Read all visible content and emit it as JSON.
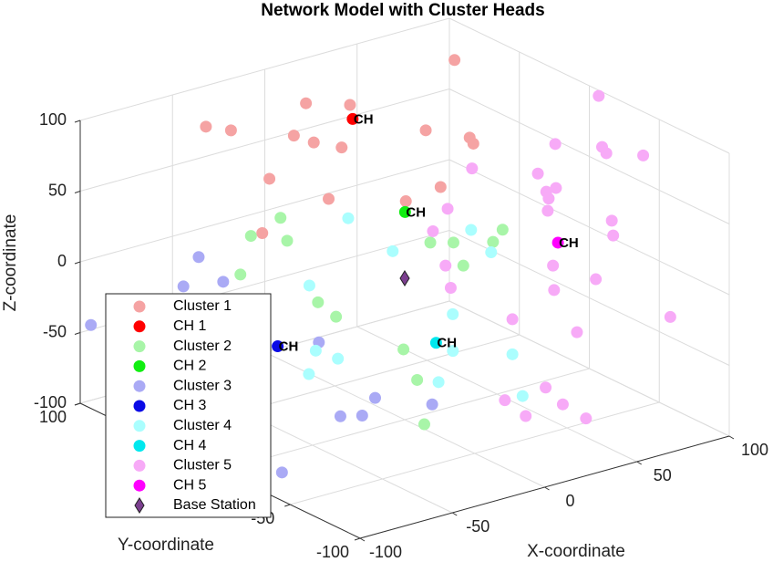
{
  "chart_data": {
    "type": "scatter3d",
    "title": "Network Model with Cluster Heads",
    "xlabel": "X-coordinate",
    "ylabel": "Y-coordinate",
    "zlabel": "Z-coordinate",
    "xlim": [
      -100,
      100
    ],
    "ylim": [
      -100,
      100
    ],
    "zlim": [
      -100,
      100
    ],
    "xticks": [
      -100,
      -50,
      0,
      50,
      100
    ],
    "yticks": [
      -100,
      -50,
      0,
      50,
      100
    ],
    "zticks": [
      -100,
      -50,
      0,
      50,
      100
    ],
    "grid": true,
    "legend": "lower-left",
    "series": [
      {
        "name": "Cluster 1",
        "color": "#f5a3a3",
        "marker": "circle",
        "x": [
          -41,
          -35,
          -5,
          9,
          -7,
          0,
          6,
          -21,
          -20,
          15,
          22,
          27,
          77,
          42,
          44,
          -37
        ],
        "y": [
          88,
          78,
          64,
          51,
          70,
          65,
          53,
          69,
          28,
          19,
          14,
          10,
          66,
          9,
          9,
          53
        ],
        "z": [
          80,
          80,
          95,
          95,
          70,
          65,
          65,
          45,
          50,
          40,
          90,
          50,
          95,
          80,
          75,
          20
        ]
      },
      {
        "name": "CH 1",
        "color": "#ff0000",
        "marker": "circle",
        "label": "CH",
        "x": [
          15
        ],
        "y": [
          57
        ],
        "z": [
          80
        ]
      },
      {
        "name": "Cluster 2",
        "color": "#a8f5a8",
        "marker": "circle",
        "x": [
          -40,
          -53,
          -44,
          -64,
          -47,
          -41,
          4,
          12,
          9,
          16,
          28,
          -31,
          -38,
          -47
        ],
        "y": [
          36,
          40,
          26,
          33,
          0,
          -5,
          -13,
          -19,
          -30,
          -42,
          -33,
          -40,
          -59,
          -76
        ],
        "z": [
          40,
          30,
          30,
          10,
          0,
          -10,
          30,
          30,
          20,
          40,
          40,
          -20,
          -30,
          -50
        ]
      },
      {
        "name": "CH 2",
        "color": "#11ee11",
        "marker": "circle",
        "label": "CH",
        "x": [
          7
        ],
        "y": [
          9
        ],
        "z": [
          40
        ]
      },
      {
        "name": "Cluster 3",
        "color": "#aaaaf5",
        "marker": "circle",
        "x": [
          -98,
          -76,
          -82,
          -65,
          -45,
          -35,
          -50,
          -42,
          -90,
          -20
        ],
        "y": [
          95,
          47,
          50,
          44,
          2,
          -25,
          -20,
          -25,
          -31,
          -46
        ],
        "z": [
          -43,
          20,
          0,
          0,
          -30,
          -60,
          -70,
          -70,
          -90,
          -60
        ]
      },
      {
        "name": "CH 3",
        "color": "#0a0ae6",
        "marker": "circle",
        "label": "CH",
        "x": [
          -62
        ],
        "y": [
          9
        ],
        "z": [
          -30
        ]
      },
      {
        "name": "Cluster 4",
        "color": "#aafefe",
        "marker": "circle",
        "x": [
          -17,
          -5,
          17,
          18,
          -38,
          -52,
          -61,
          -40,
          1,
          -5,
          -12,
          3,
          7
        ],
        "y": [
          18,
          2,
          -25,
          -38,
          18,
          -5,
          -12,
          -5,
          -33,
          -41,
          -40,
          -73,
          -75
        ],
        "z": [
          40,
          20,
          40,
          30,
          0,
          -30,
          -40,
          -40,
          -10,
          -30,
          -50,
          -20,
          -50
        ]
      },
      {
        "name": "CH 4",
        "color": "#00e8ee",
        "marker": "circle",
        "label": "CH",
        "x": [
          -5
        ],
        "y": [
          -29
        ],
        "z": [
          -30
        ]
      },
      {
        "name": "Cluster 5",
        "color": "#f7aaf7",
        "marker": "circle",
        "x": [
          96,
          91,
          88,
          89,
          77,
          41,
          60,
          60,
          66,
          56,
          57,
          72,
          72,
          24,
          13,
          13,
          9,
          50,
          43,
          55,
          84,
          28,
          41,
          21,
          25,
          8,
          14,
          33
        ],
        "y": [
          -12,
          -21,
          -28,
          -53,
          -6,
          6,
          -16,
          -22,
          -21,
          -29,
          -27,
          -53,
          -54,
          1,
          -3,
          -12,
          -21,
          -40,
          -50,
          -64,
          -79,
          -40,
          -69,
          -73,
          -80,
          -61,
          -68,
          -86
        ],
        "z": [
          100,
          70,
          70,
          80,
          70,
          60,
          60,
          50,
          50,
          50,
          40,
          40,
          30,
          40,
          30,
          10,
          0,
          10,
          0,
          10,
          -20,
          -20,
          -20,
          -50,
          -60,
          -60,
          -70,
          -70
        ]
      },
      {
        "name": "CH 5",
        "color": "#ff00ff",
        "marker": "circle",
        "label": "CH",
        "x": [
          58
        ],
        "y": [
          -33
        ],
        "z": [
          20
        ]
      },
      {
        "name": "Base Station",
        "color": "#7b3f8f",
        "marker": "diamond",
        "x": [
          0
        ],
        "y": [
          0
        ],
        "z": [
          0
        ]
      }
    ]
  }
}
